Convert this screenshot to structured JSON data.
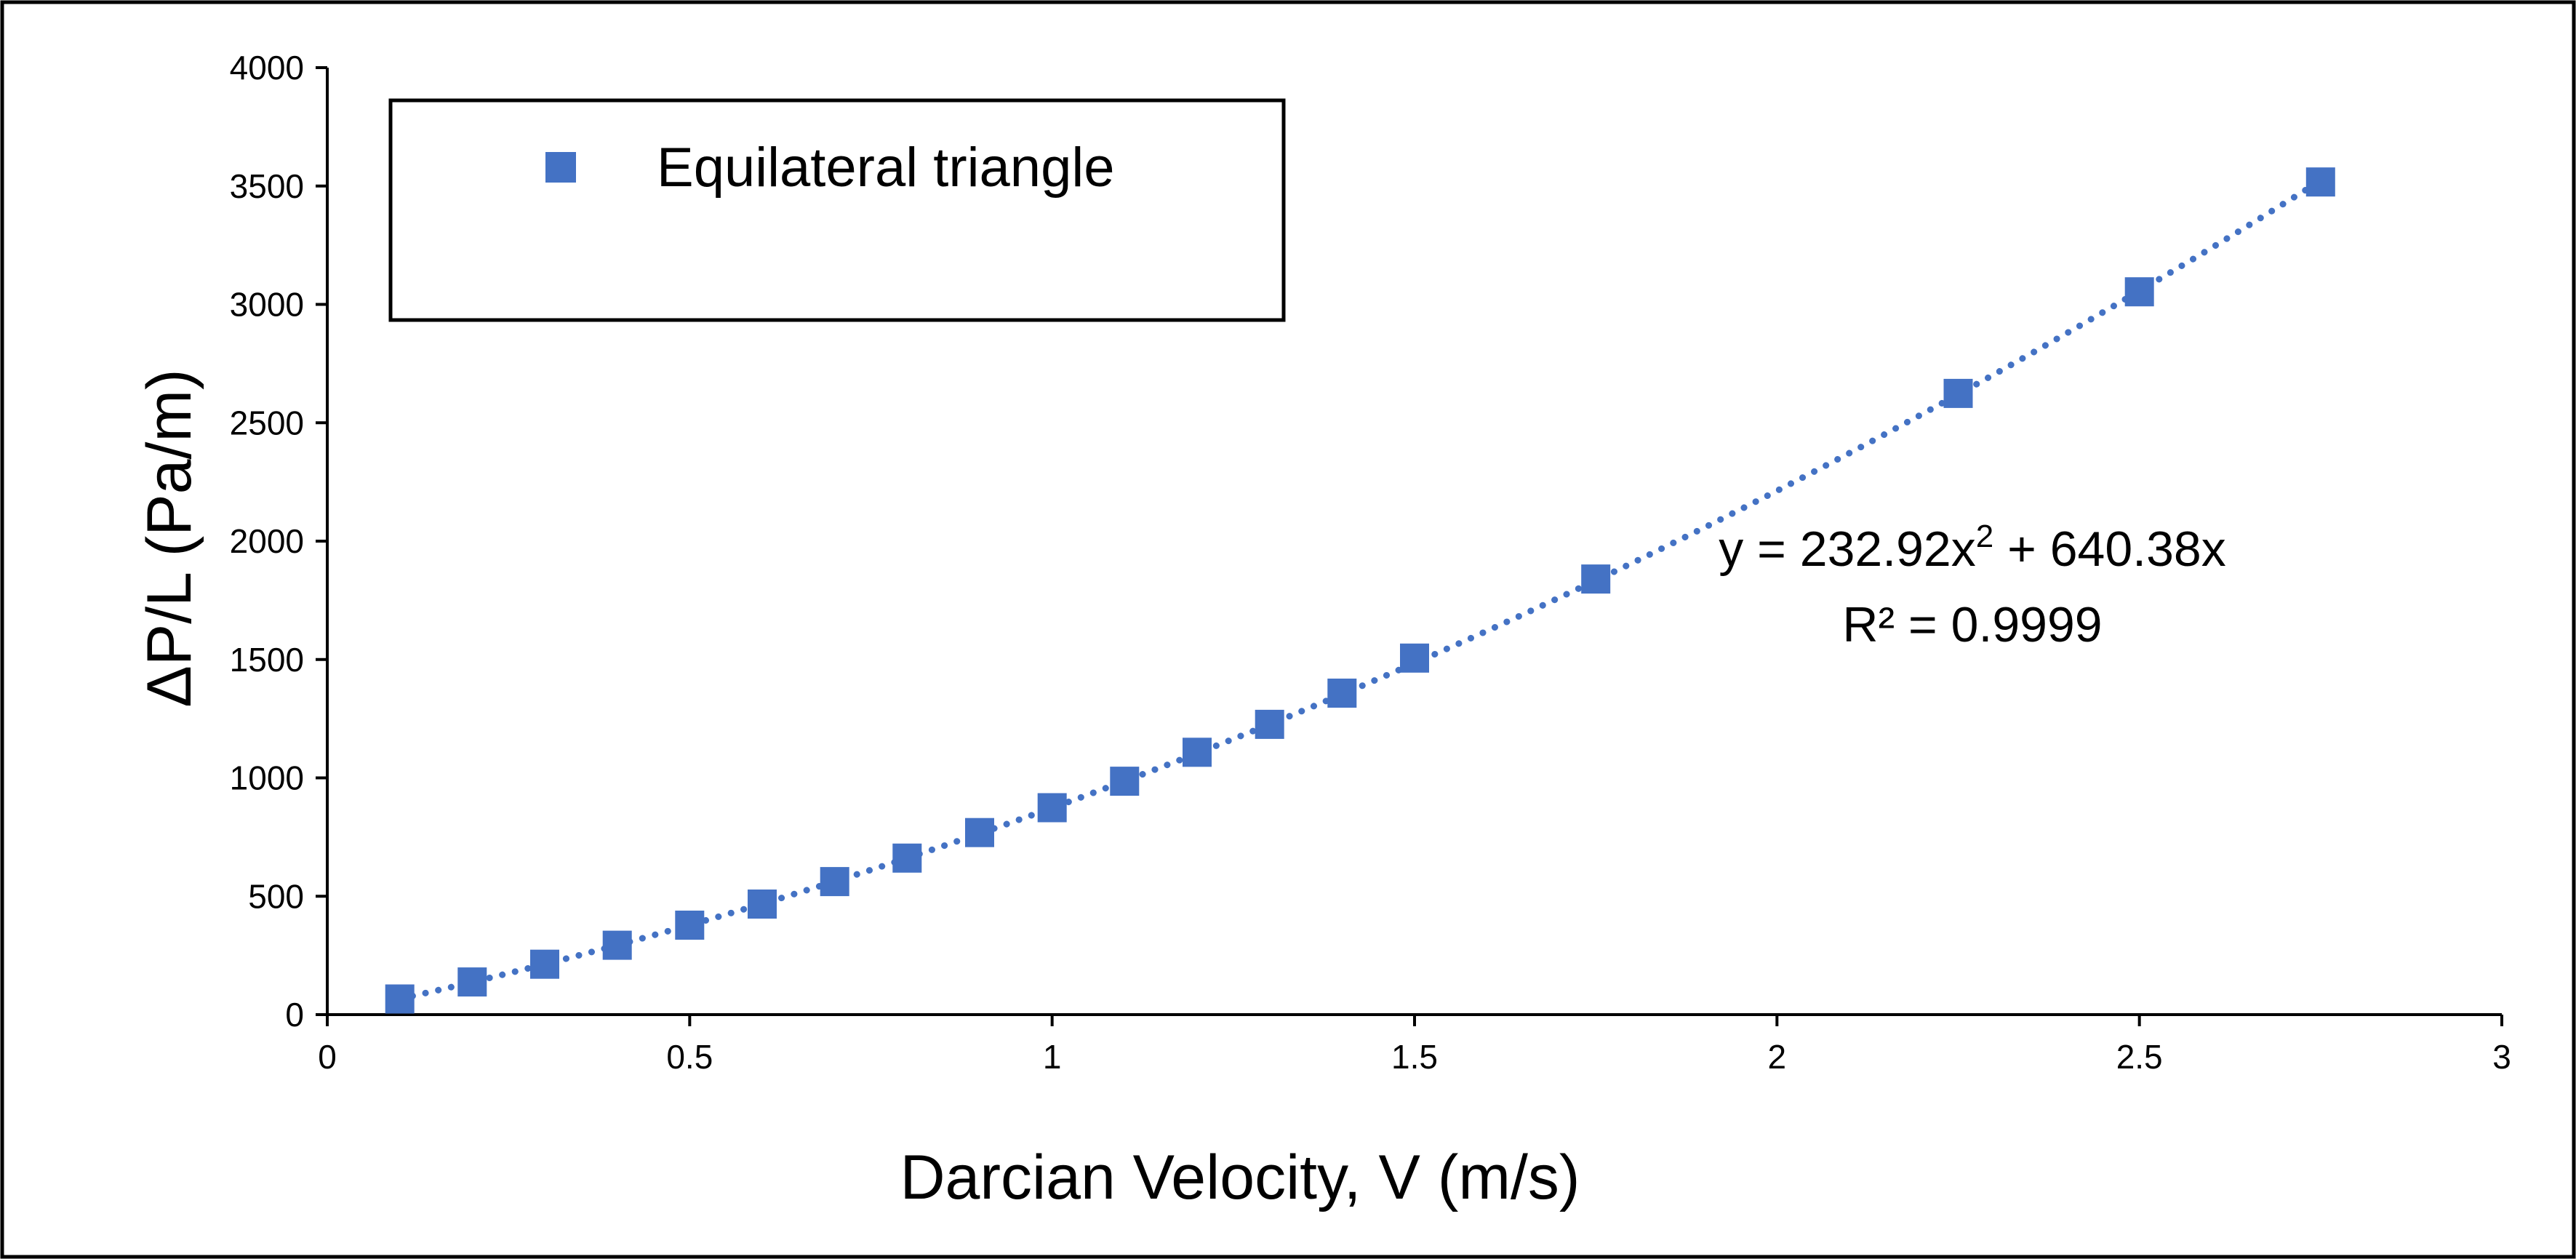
{
  "chart_data": {
    "type": "scatter",
    "title": "",
    "xlabel": "Darcian Velocity, V (m/s)",
    "ylabel": "ΔP/L (Pa/m)",
    "xlim": [
      0,
      3
    ],
    "ylim": [
      0,
      4000
    ],
    "x_ticks": [
      "0",
      "0.5",
      "1",
      "1.5",
      "2",
      "2.5",
      "3"
    ],
    "x_tick_values": [
      0,
      0.5,
      1,
      1.5,
      2,
      2.5,
      3
    ],
    "y_ticks": [
      "0",
      "500",
      "1000",
      "1500",
      "2000",
      "2500",
      "3000",
      "3500",
      "4000"
    ],
    "y_tick_values": [
      0,
      500,
      1000,
      1500,
      2000,
      2500,
      3000,
      3500,
      4000
    ],
    "grid": false,
    "legend_position": "top-left",
    "series": [
      {
        "name": "Equilateral triangle",
        "marker": "square",
        "color": "#4472C4",
        "x": [
          0.1,
          0.2,
          0.3,
          0.4,
          0.5,
          0.6,
          0.7,
          0.8,
          0.9,
          1.0,
          1.1,
          1.2,
          1.3,
          1.4,
          1.5,
          1.75,
          2.25,
          2.5,
          2.75
        ],
        "y": [
          66,
          138,
          213,
          293,
          378,
          467,
          562,
          661,
          769,
          874,
          986,
          1108,
          1226,
          1358,
          1506,
          1840,
          2624,
          3053,
          3517
        ]
      }
    ],
    "trendline": {
      "type": "polynomial",
      "style": "dotted",
      "color": "#4472C4",
      "a2": 232.92,
      "a1": 640.38,
      "x_range": [
        0.1,
        2.75
      ],
      "equation_prefix": "y = 232.92x",
      "equation_sup": "2",
      "equation_suffix": " + 640.38x",
      "r2_label": "R² = 0.9999"
    }
  }
}
